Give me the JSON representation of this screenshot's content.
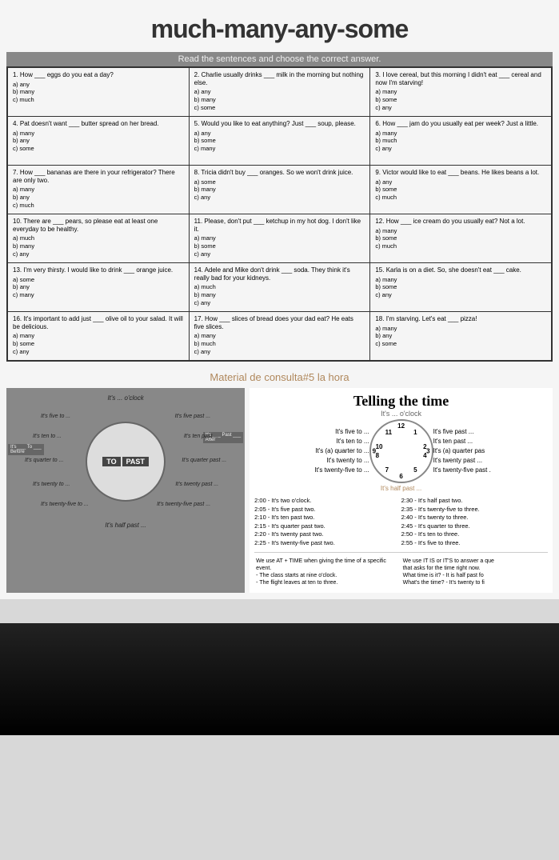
{
  "title": "much-many-any-some",
  "subtitle": "Read the sentences and choose the correct answer.",
  "cells": [
    {
      "q": "1. How ___ eggs do you eat a day?",
      "a": "a) any",
      "b": "b) many",
      "c": "c) much"
    },
    {
      "q": "2. Charlie usually drinks ___ milk in the morning but nothing else.",
      "a": "a) any",
      "b": "b) many",
      "c": "c) some"
    },
    {
      "q": "3. I love cereal, but this morning I didn't eat ___ cereal and now I'm starving!",
      "a": "a) many",
      "b": "b) some",
      "c": "c) any"
    },
    {
      "q": "4. Pat doesn't want ___ butter spread on her bread.",
      "a": "a) many",
      "b": "b) any",
      "c": "c) some"
    },
    {
      "q": "5. Would you like to eat anything? Just ___ soup, please.",
      "a": "a) any",
      "b": "b) some",
      "c": "c) many"
    },
    {
      "q": "6. How ___ jam do you usually eat per week? Just a little.",
      "a": "a) many",
      "b": "b) much",
      "c": "c) any"
    },
    {
      "q": "7. How ___ bananas are there in your refrigerator? There are only two.",
      "a": "a) many",
      "b": "b) any",
      "c": "c) much"
    },
    {
      "q": "8. Tricia didn't buy ___ oranges. So we won't drink juice.",
      "a": "a) some",
      "b": "b) many",
      "c": "c) any"
    },
    {
      "q": "9. Victor would like to eat ___ beans. He likes beans a lot.",
      "a": "a) any",
      "b": "b) some",
      "c": "c) much"
    },
    {
      "q": "10. There are ___ pears, so please eat at least one everyday to be healthy.",
      "a": "a) much",
      "b": "b) many",
      "c": "c) any"
    },
    {
      "q": "11. Please, don't put ___ ketchup in my hot dog. I don't like it.",
      "a": "a) many",
      "b": "b) some",
      "c": "c) any"
    },
    {
      "q": "12. How ___ ice cream do you usually eat? Not a lot.",
      "a": "a) many",
      "b": "b) some",
      "c": "c) much"
    },
    {
      "q": "13. I'm very thirsty. I would like to drink ___ orange juice.",
      "a": "a) some",
      "b": "b) any",
      "c": "c) many"
    },
    {
      "q": "14. Adele and Mike don't drink ___ soda. They think it's really bad for your kidneys.",
      "a": "a) much",
      "b": "b) many",
      "c": "c) any"
    },
    {
      "q": "15. Karla is on a diet. So, she doesn't eat ___ cake.",
      "a": "a) many",
      "b": "b) some",
      "c": "c) any"
    },
    {
      "q": "16. It's important to add just ___ olive oil to your salad. It will be delicious.",
      "a": "a) many",
      "b": "b) some",
      "c": "c) any"
    },
    {
      "q": "17. How ___ slices of bread does your dad eat? He eats five slices.",
      "a": "a) many",
      "b": "b) much",
      "c": "c) any"
    },
    {
      "q": "18. I'm starving. Let's eat ___ pizza!",
      "a": "a) many",
      "b": "b) any",
      "c": "c) some"
    }
  ],
  "material": "Material de consulta#5  la hora",
  "left": {
    "top": "It's ... o'clock",
    "l1": "It's five to ...",
    "r1": "It's five past ...",
    "l2": "It's ten to ...",
    "r2": "It's ten past ...",
    "l3": "It's quarter to ...",
    "r3": "It's quarter past ...",
    "l4": "It's twenty to ...",
    "r4": "It's twenty past ...",
    "l5": "It's twenty-five to ...",
    "r5": "It's twenty-five past ...",
    "bot": "It's half past ...",
    "to": "TO",
    "past": "PAST",
    "tag1a": "It's ___ To ___",
    "tag1b": "Before",
    "tag2a": "It's ___ Past ___",
    "tag2b": "After"
  },
  "right": {
    "title": "Telling the time",
    "oclock": "It's ... o'clock",
    "half": "It's half past ...",
    "l1": "It's five to ...",
    "r1": "It's five past ...",
    "l2": "It's ten to ...",
    "r2": "It's ten past ...",
    "l3": "It's (a) quarter to ...",
    "r3": "It's (a) quarter pas",
    "l4": "It's twenty to ...",
    "r4": "It's twenty past ...",
    "l5": "It's twenty-five to ...",
    "r5": "It's twenty-five past .",
    "t1": "2:00 - It's two o'clock.",
    "t7": "2:30 - It's half past two.",
    "t2": "2:05 - It's five past two.",
    "t8": "2:35 - It's twenty-five to three.",
    "t3": "2:10 - It's ten past two.",
    "t9": "2:40 - It's twenty to three.",
    "t4": "2:15 - It's quarter past two.",
    "t10": "2:45 - It's quarter to three.",
    "t5": "2:20 - It's twenty past two.",
    "t11": "2:50 - It's ten to three.",
    "t6": "2:25 - It's twenty-five past two.",
    "t12": "2:55 - It's five to three.",
    "u1": "We use AT + TIME when giving the time of a specific event.",
    "u2": "- The class starts at nine o'clock.",
    "u3": "- The flight leaves at ten to three.",
    "u4": "We use IT IS or IT'S to answer a que",
    "u5": "that asks for the time right now.",
    "u6": "What time is it?   - It is half past fo",
    "u7": "What's the time?  - It's twenty to fi"
  }
}
